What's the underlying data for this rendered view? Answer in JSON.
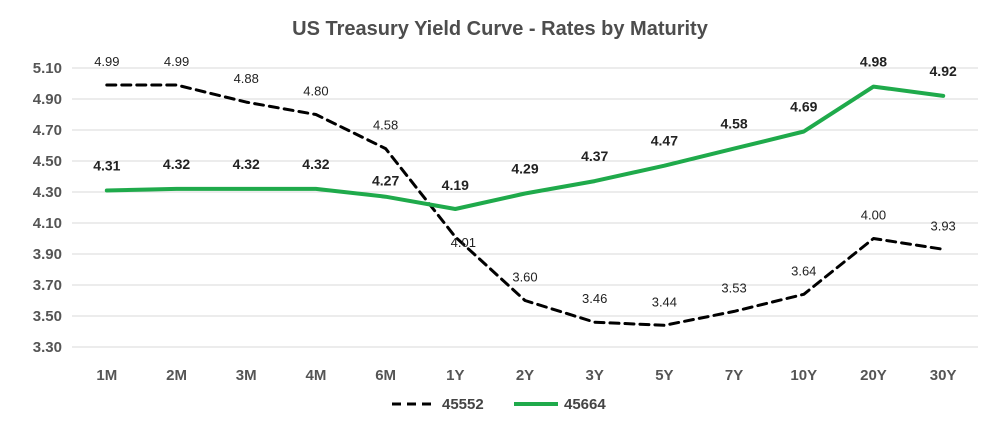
{
  "chart_data": {
    "type": "line",
    "title": "US Treasury Yield Curve - Rates by Maturity",
    "xlabel": "",
    "ylabel": "",
    "categories": [
      "1M",
      "2M",
      "3M",
      "4M",
      "6M",
      "1Y",
      "2Y",
      "3Y",
      "5Y",
      "7Y",
      "10Y",
      "20Y",
      "30Y"
    ],
    "y_ticks": [
      "3.30",
      "3.50",
      "3.70",
      "3.90",
      "4.10",
      "4.30",
      "4.50",
      "4.70",
      "4.90",
      "5.10"
    ],
    "ylim": [
      3.3,
      5.1
    ],
    "grid": true,
    "legend_position": "bottom",
    "series": [
      {
        "name": "45552",
        "color": "#000000",
        "style": "dashed",
        "values": [
          4.99,
          4.99,
          4.88,
          4.8,
          4.58,
          4.01,
          3.6,
          3.46,
          3.44,
          3.53,
          3.64,
          4.0,
          3.93
        ],
        "labels": [
          "4.99",
          "4.99",
          "4.88",
          "4.80",
          "4.58",
          "4.01",
          "3.60",
          "3.46",
          "3.44",
          "3.53",
          "3.64",
          "4.00",
          "3.93"
        ]
      },
      {
        "name": "45664",
        "color": "#1faa4b",
        "style": "solid",
        "values": [
          4.31,
          4.32,
          4.32,
          4.32,
          4.27,
          4.19,
          4.29,
          4.37,
          4.47,
          4.58,
          4.69,
          4.98,
          4.92
        ],
        "labels": [
          "4.31",
          "4.32",
          "4.32",
          "4.32",
          "4.27",
          "4.19",
          "4.29",
          "4.37",
          "4.47",
          "4.58",
          "4.69",
          "4.98",
          "4.92"
        ]
      }
    ]
  }
}
